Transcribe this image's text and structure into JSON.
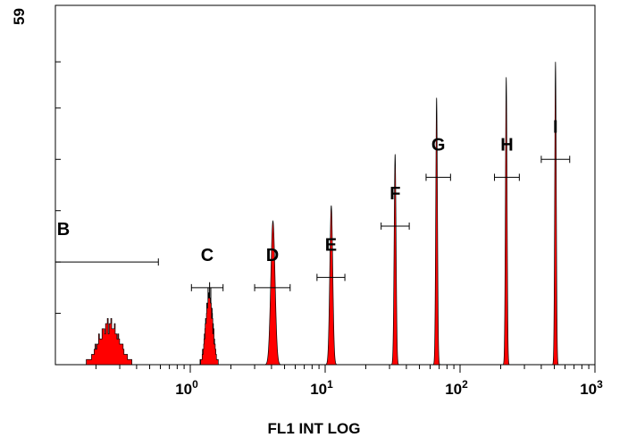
{
  "chart_data": {
    "type": "histogram",
    "x_axis": {
      "label": "FL1 INT LOG",
      "scale": "log",
      "range": [
        0.1,
        1000
      ],
      "major_ticks": [
        {
          "value": 1,
          "base": "10",
          "exp": "0"
        },
        {
          "value": 10,
          "base": "10",
          "exp": "1"
        },
        {
          "value": 100,
          "base": "10",
          "exp": "2"
        },
        {
          "value": 1000,
          "base": "10",
          "exp": "3"
        }
      ]
    },
    "y_axis": {
      "max_label": "59",
      "range": [
        0,
        70
      ],
      "tick_values": [
        10,
        20,
        30,
        40,
        50,
        59
      ]
    },
    "fill_color": "#ff0000",
    "peaks": [
      {
        "center": 0.25,
        "height": 8,
        "width_decades": 0.26,
        "jagged": true
      },
      {
        "center": 1.38,
        "height": 14,
        "width_decades": 0.09,
        "jagged": true
      },
      {
        "center": 4.1,
        "height": 28,
        "width_decades": 0.055,
        "jagged": false
      },
      {
        "center": 11.1,
        "height": 31,
        "width_decades": 0.038,
        "jagged": false
      },
      {
        "center": 33,
        "height": 41,
        "width_decades": 0.025,
        "jagged": false
      },
      {
        "center": 67,
        "height": 52,
        "width_decades": 0.022,
        "jagged": false
      },
      {
        "center": 220,
        "height": 56,
        "width_decades": 0.021,
        "jagged": false
      },
      {
        "center": 510,
        "height": 59,
        "width_decades": 0.02,
        "jagged": false
      }
    ],
    "gates": [
      {
        "label": "B",
        "x_start": 0.1,
        "x_end": 0.58,
        "y": 20
      },
      {
        "label": "C",
        "x_start": 1.02,
        "x_end": 1.75,
        "y": 15
      },
      {
        "label": "D",
        "x_start": 3.0,
        "x_end": 5.5,
        "y": 15
      },
      {
        "label": "E",
        "x_start": 8.7,
        "x_end": 14,
        "y": 17
      },
      {
        "label": "F",
        "x_start": 26,
        "x_end": 42,
        "y": 27
      },
      {
        "label": "G",
        "x_start": 56,
        "x_end": 85,
        "y": 36.5
      },
      {
        "label": "H",
        "x_start": 180,
        "x_end": 275,
        "y": 36.5
      },
      {
        "label": "I",
        "x_start": 400,
        "x_end": 650,
        "y": 40
      }
    ]
  }
}
